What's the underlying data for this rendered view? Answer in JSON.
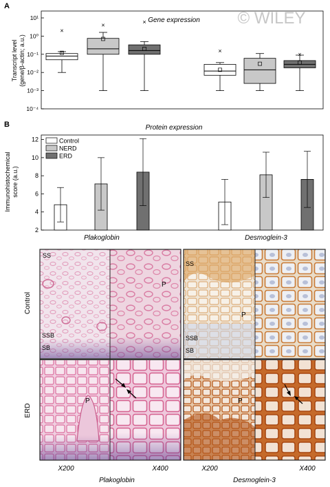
{
  "watermark": "© WILEY",
  "panel_a": {
    "letter": "A",
    "title": "Gene expression"
  },
  "panel_b": {
    "letter": "B",
    "title": "Protein expression"
  },
  "micrographs": {
    "row_labels": [
      "Control",
      "ERD"
    ],
    "col_groups": [
      "Plakoglobin",
      "Desmoglein-3"
    ],
    "magnifications": [
      "X200",
      "X400"
    ],
    "annotations": {
      "control_plako_200": [
        "SS",
        "SSB",
        "SB"
      ],
      "control_plako_400": [
        "P"
      ],
      "control_dsg_200": [
        "SS",
        "P",
        "SSB",
        "SB"
      ],
      "erd_plako_200": [
        "P"
      ],
      "erd_dsg_200": [
        "P"
      ]
    },
    "colors": {
      "plakoglobin_stain": "#e27fa7",
      "desmoglein_stain": "#c46a2c",
      "background_stain": "#ece4ec"
    }
  },
  "chart_data": [
    {
      "type": "box",
      "title": "Gene expression",
      "ylabel": "Transcript level (gene/β-actin; a.u.)",
      "yscale": "log",
      "ylim": [
        0.0001,
        10
      ],
      "yticks": [
        "10⁻⁴",
        "10⁻³",
        "10⁻²",
        "10⁻¹",
        "10⁰",
        "10¹"
      ],
      "groups": [
        "Plakoglobin",
        "Desmoglein-3"
      ],
      "series_colors": {
        "Control": "#ffffff",
        "NERD": "#c8c8c8",
        "ERD": "#707070"
      },
      "boxes": [
        {
          "group": "Plakoglobin",
          "series": "Control",
          "min": 0.01,
          "q1": 0.05,
          "median": 0.08,
          "q3": 0.11,
          "max": 0.14,
          "mean": 0.12,
          "outlier": 2
        },
        {
          "group": "Plakoglobin",
          "series": "NERD",
          "min": 0.001,
          "q1": 0.1,
          "median": 0.2,
          "q3": 0.75,
          "max": 1.6,
          "mean": 0.7,
          "outlier": 4
        },
        {
          "group": "Plakoglobin",
          "series": "ERD",
          "min": 0.001,
          "q1": 0.1,
          "median": 0.16,
          "q3": 0.33,
          "max": 0.5,
          "mean": 0.2,
          "outlier": 6
        },
        {
          "group": "Desmoglein-3",
          "series": "Control",
          "min": 0.001,
          "q1": 0.007,
          "median": 0.012,
          "q3": 0.028,
          "max": 0.035,
          "mean": 0.014,
          "outlier": 0.15
        },
        {
          "group": "Desmoglein-3",
          "series": "NERD",
          "min": 0.001,
          "q1": 0.0025,
          "median": 0.014,
          "q3": 0.06,
          "max": 0.11,
          "mean": 0.03,
          "outlier": null
        },
        {
          "group": "Desmoglein-3",
          "series": "ERD",
          "min": 0.001,
          "q1": 0.018,
          "median": 0.028,
          "q3": 0.045,
          "max": 0.09,
          "mean": 0.035,
          "outlier": 0.1
        }
      ]
    },
    {
      "type": "bar",
      "title": "Protein expression",
      "ylabel": "Immunohistochemical score (a.u.)",
      "ylim": [
        2,
        12.5
      ],
      "yticks": [
        2,
        4,
        6,
        8,
        10,
        12
      ],
      "categories": [
        "Plakoglobin",
        "Desmoglein-3"
      ],
      "legend": "top-left",
      "series": [
        {
          "name": "Control",
          "color": "#ffffff",
          "values": [
            4.8,
            5.1
          ],
          "errors": [
            1.9,
            2.5
          ]
        },
        {
          "name": "NERD",
          "color": "#c8c8c8",
          "values": [
            7.1,
            8.1
          ],
          "errors": [
            2.9,
            2.5
          ]
        },
        {
          "name": "ERD",
          "color": "#707070",
          "values": [
            8.4,
            7.6
          ],
          "errors": [
            3.7,
            3.1
          ]
        }
      ]
    }
  ]
}
